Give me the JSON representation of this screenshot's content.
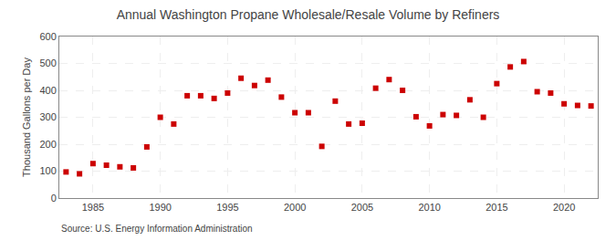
{
  "chart_data": {
    "type": "scatter",
    "title": "Annual Washington Propane Wholesale/Resale Volume by Refiners",
    "y_label": "Thousand Gallons per Day",
    "source": "Source: U.S. Energy Information Administration",
    "x": [
      1983,
      1984,
      1985,
      1986,
      1987,
      1988,
      1989,
      1990,
      1991,
      1992,
      1993,
      1994,
      1995,
      1996,
      1997,
      1998,
      1999,
      2000,
      2001,
      2002,
      2003,
      2004,
      2005,
      2006,
      2007,
      2008,
      2009,
      2010,
      2011,
      2012,
      2013,
      2014,
      2015,
      2016,
      2017,
      2018,
      2019,
      2020,
      2021,
      2022
    ],
    "values": [
      97,
      90,
      128,
      122,
      116,
      112,
      190,
      300,
      275,
      380,
      380,
      370,
      390,
      445,
      418,
      438,
      375,
      317,
      317,
      192,
      360,
      275,
      278,
      408,
      440,
      400,
      302,
      268,
      310,
      307,
      365,
      300,
      425,
      487,
      507,
      395,
      390,
      350,
      344,
      342
    ],
    "color": "#cc0000",
    "marker": "square",
    "xlim": [
      1982.5,
      2022.5
    ],
    "xticks": [
      1985,
      1990,
      1995,
      2000,
      2005,
      2010,
      2015,
      2020
    ],
    "ylim": [
      0,
      600
    ],
    "yticks": [
      0,
      100,
      200,
      300,
      400,
      500,
      600
    ],
    "grid": true
  }
}
